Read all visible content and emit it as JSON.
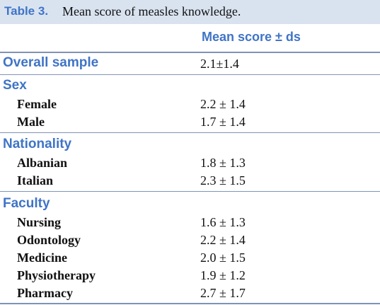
{
  "table": {
    "label": "Table 3.",
    "caption": "Mean score of measles knowledge.",
    "column_header": "Mean score ± ds",
    "overall": {
      "label": "Overall sample",
      "value": "2.1±1.4"
    },
    "sections": [
      {
        "title": "Sex",
        "rows": [
          {
            "label": "Female",
            "value": "2.2 ± 1.4"
          },
          {
            "label": "Male",
            "value": "1.7 ± 1.4"
          }
        ]
      },
      {
        "title": "Nationality",
        "rows": [
          {
            "label": "Albanian",
            "value": "1.8 ± 1.3"
          },
          {
            "label": "Italian",
            "value": "2.3 ± 1.5"
          }
        ]
      },
      {
        "title": "Faculty",
        "rows": [
          {
            "label": "Nursing",
            "value": "1.6 ± 1.3"
          },
          {
            "label": "Odontology",
            "value": "2.2 ± 1.4"
          },
          {
            "label": "Medicine",
            "value": "2.0 ± 1.5"
          },
          {
            "label": "Physiotherapy",
            "value": "1.9 ± 1.2"
          },
          {
            "label": "Pharmacy",
            "value": "2.7 ± 1.7"
          }
        ]
      }
    ]
  },
  "colors": {
    "accent": "#3f74c6",
    "title_band": "#d9e3f0",
    "rule": "#7f93b5"
  }
}
